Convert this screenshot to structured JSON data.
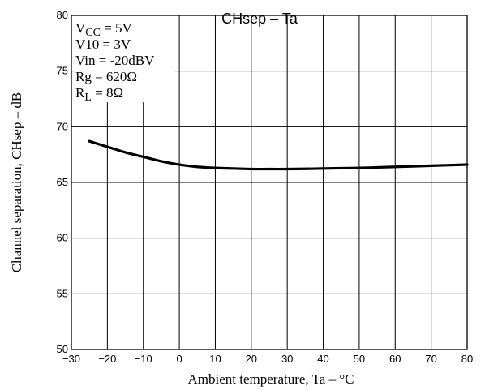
{
  "chart_data": {
    "type": "line",
    "title": "CHsep  –  Ta",
    "xlabel": "Ambient temperature, Ta  –  °C",
    "ylabel": "Channel separation, CHsep  –  dB",
    "xlim": [
      -30,
      80
    ],
    "ylim": [
      50,
      80
    ],
    "x_ticks": [
      -30,
      -20,
      -10,
      0,
      10,
      20,
      30,
      40,
      50,
      60,
      70,
      80
    ],
    "x_tick_labels": [
      "−30",
      "−20",
      "−10",
      "0",
      "10",
      "20",
      "30",
      "40",
      "50",
      "60",
      "70",
      "80"
    ],
    "y_ticks": [
      50,
      55,
      60,
      65,
      70,
      75,
      80
    ],
    "y_tick_labels": [
      "50",
      "55",
      "60",
      "65",
      "70",
      "75",
      "80"
    ],
    "grid": true,
    "series": [
      {
        "x": [
          -25,
          -20,
          -15,
          -10,
          -5,
          0,
          5,
          10,
          15,
          20,
          25,
          30,
          35,
          40,
          45,
          50,
          55,
          60,
          65,
          70,
          75,
          80
        ],
        "values": [
          68.7,
          68.2,
          67.7,
          67.3,
          66.9,
          66.6,
          66.4,
          66.3,
          66.25,
          66.2,
          66.2,
          66.2,
          66.22,
          66.25,
          66.28,
          66.3,
          66.35,
          66.4,
          66.45,
          66.5,
          66.55,
          66.6
        ]
      }
    ],
    "conditions": {
      "lines": [
        {
          "main": "V",
          "sub": "CC",
          "rest": " = 5V"
        },
        {
          "main": "V10 = 3V",
          "sub": "",
          "rest": ""
        },
        {
          "main": "Vin = -20dBV",
          "sub": "",
          "rest": ""
        },
        {
          "main": "Rg = 620Ω",
          "sub": "",
          "rest": ""
        },
        {
          "main": "R",
          "sub": "L",
          "rest": " = 8Ω"
        }
      ]
    }
  }
}
